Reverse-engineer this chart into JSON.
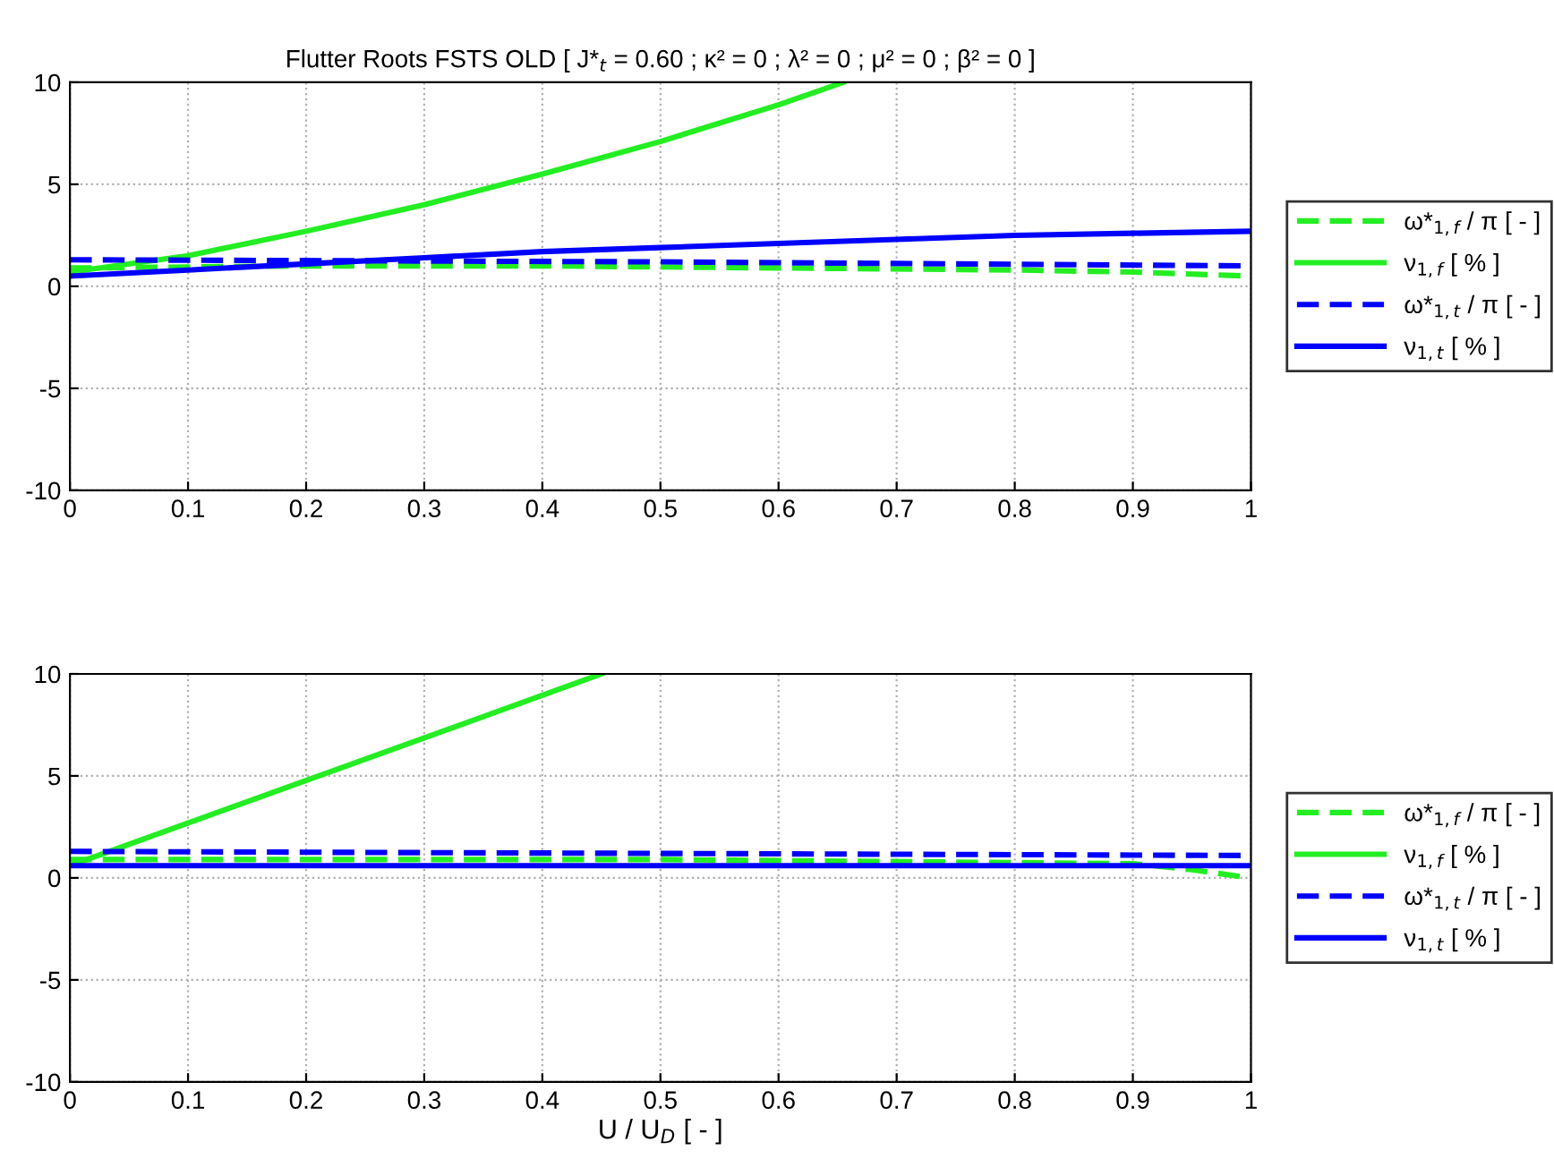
{
  "chart_data": [
    {
      "type": "line",
      "title": "Flutter Roots FSTS OLD [ J*$_{t}$ = 0.60 ; κ² = 0 ; λ² = 0 ; μ² = 0 ; β² = 0 ]",
      "xlim": [
        0,
        1
      ],
      "ylim": [
        -10,
        10
      ],
      "xticks": [
        0,
        0.1,
        0.2,
        0.3,
        0.4,
        0.5,
        0.6,
        0.7,
        0.8,
        0.9,
        1
      ],
      "yticks": [
        -10,
        -5,
        0,
        5,
        10
      ],
      "grid": true,
      "legend": "right",
      "series": [
        {
          "name": "ω*$_{1,f}$ / π [ - ]",
          "color": "#22ee22",
          "line_style": "dashed",
          "x": [
            0,
            0.2,
            0.4,
            0.6,
            0.8,
            0.9,
            1
          ],
          "values": [
            0.9,
            1.0,
            1.0,
            0.9,
            0.8,
            0.7,
            0.5
          ]
        },
        {
          "name": "ν$_{1,f}$ [ % ]",
          "color": "#22ee22",
          "line_style": "solid",
          "x": [
            0,
            0.1,
            0.2,
            0.3,
            0.4,
            0.5,
            0.6,
            0.655
          ],
          "values": [
            0.7,
            1.5,
            2.7,
            4.0,
            5.5,
            7.1,
            8.9,
            10
          ]
        },
        {
          "name": "ω*$_{1,t}$ / π [ - ]",
          "color": "#0000ff",
          "line_style": "dashed",
          "x": [
            0,
            0.5,
            1
          ],
          "values": [
            1.3,
            1.2,
            1.0
          ]
        },
        {
          "name": "ν$_{1,t}$ [ % ]",
          "color": "#0000ff",
          "line_style": "solid",
          "x": [
            0,
            0.1,
            0.2,
            0.3,
            0.4,
            0.5,
            0.6,
            0.7,
            0.8,
            0.9,
            1
          ],
          "values": [
            0.5,
            0.8,
            1.1,
            1.4,
            1.7,
            1.9,
            2.1,
            2.3,
            2.5,
            2.6,
            2.7
          ]
        }
      ]
    },
    {
      "type": "line",
      "xlabel": "U / U$_{D}$ [ - ]",
      "xlim": [
        0,
        1
      ],
      "ylim": [
        -10,
        10
      ],
      "xticks": [
        0,
        0.1,
        0.2,
        0.3,
        0.4,
        0.5,
        0.6,
        0.7,
        0.8,
        0.9,
        1
      ],
      "yticks": [
        -10,
        -5,
        0,
        5,
        10
      ],
      "grid": true,
      "legend": "right",
      "series": [
        {
          "name": "ω*$_{1,f}$ / π [ - ]",
          "color": "#22ee22",
          "line_style": "dashed",
          "x": [
            0,
            0.5,
            0.9,
            0.95,
            1
          ],
          "values": [
            0.9,
            0.9,
            0.7,
            0.4,
            0.0
          ]
        },
        {
          "name": "ν$_{1,f}$ [ % ]",
          "color": "#22ee22",
          "line_style": "solid",
          "x": [
            0,
            0.45
          ],
          "values": [
            0.6,
            10
          ]
        },
        {
          "name": "ω*$_{1,t}$ / π [ - ]",
          "color": "#0000ff",
          "line_style": "dashed",
          "x": [
            0,
            0.5,
            1
          ],
          "values": [
            1.3,
            1.2,
            1.1
          ]
        },
        {
          "name": "ν$_{1,t}$ [ % ]",
          "color": "#0000ff",
          "line_style": "solid",
          "x": [
            0,
            1
          ],
          "values": [
            0.6,
            0.6
          ]
        }
      ]
    }
  ]
}
